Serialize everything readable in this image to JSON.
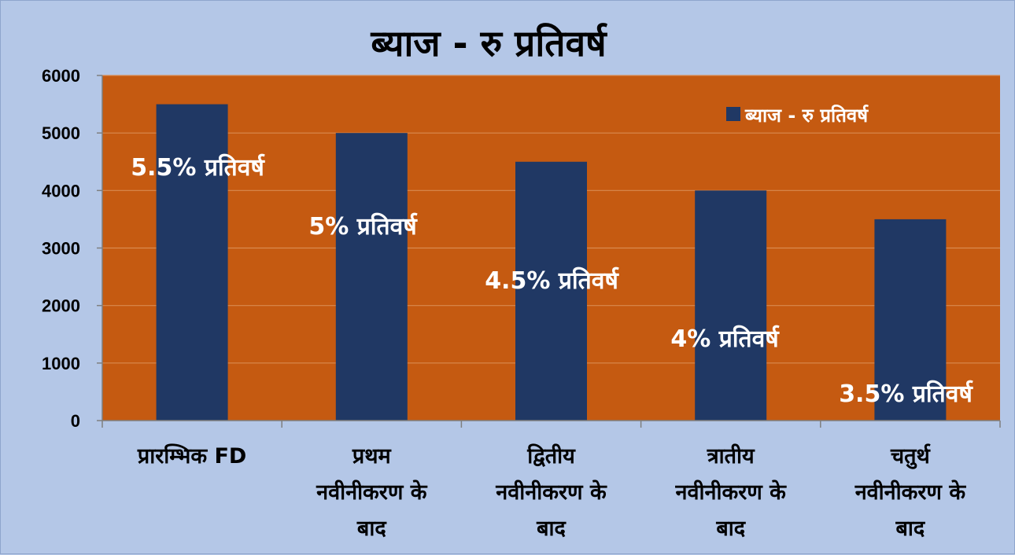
{
  "colors": {
    "background": "#b4c7e7",
    "plot_area": "#c55a11",
    "bar": "#203864",
    "gridline": "#d98a50",
    "data_label": "#ffffff"
  },
  "chart_data": {
    "type": "bar",
    "title": "ब्याज - रु प्रतिवर्ष",
    "categories": [
      [
        "प्रारम्भिक FD"
      ],
      [
        "प्रथम",
        "नवीनीकरण के",
        "बाद"
      ],
      [
        "द्वितीय",
        "नवीनीकरण के",
        "बाद"
      ],
      [
        "त्रातीय",
        "नवीनीकरण के",
        "बाद"
      ],
      [
        "चतुर्थ",
        "नवीनीकरण के",
        "बाद"
      ]
    ],
    "series": [
      {
        "name": "ब्याज - रु प्रतिवर्ष",
        "values": [
          5500,
          5000,
          4500,
          4000,
          3500
        ]
      }
    ],
    "data_labels": [
      "5.5% प्रतिवर्ष",
      "5% प्रतिवर्ष",
      "4.5% प्रतिवर्ष",
      "4% प्रतिवर्ष",
      "3.5% प्रतिवर्ष"
    ],
    "ylim": [
      0,
      6000
    ],
    "yticks": [
      0,
      1000,
      2000,
      3000,
      4000,
      5000,
      6000
    ],
    "grid": true,
    "legend_position": "top-right"
  }
}
